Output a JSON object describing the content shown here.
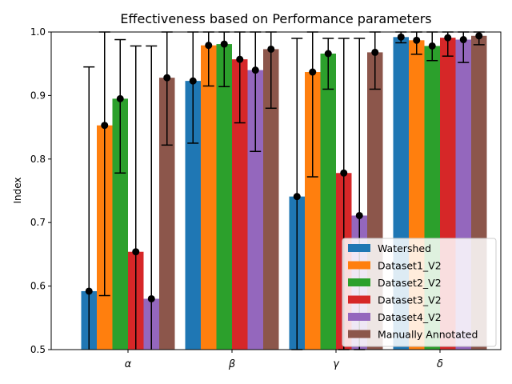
{
  "chart_data": {
    "type": "bar",
    "title": "Effectiveness based on Performance parameters",
    "xlabel": "",
    "ylabel": "Index",
    "ylim": [
      0.5,
      1.0
    ],
    "yticks": [
      "0.5",
      "0.6",
      "0.7",
      "0.8",
      "0.9",
      "1.0"
    ],
    "ytick_values": [
      0.5,
      0.6,
      0.7,
      0.8,
      0.9,
      1.0
    ],
    "categories": [
      "α",
      "β",
      "γ",
      "δ"
    ],
    "grid": false,
    "legend_position": "lower-right",
    "series": [
      {
        "name": "Watershed",
        "color": "#1f77b4",
        "values": [
          0.592,
          0.923,
          0.741,
          0.992
        ],
        "err_low": [
          0.4,
          0.825,
          0.5,
          0.983
        ],
        "err_high": [
          0.945,
          1.0,
          0.99,
          1.0
        ]
      },
      {
        "name": "Dataset1_V2",
        "color": "#ff7f0e",
        "values": [
          0.853,
          0.979,
          0.937,
          0.987
        ],
        "err_low": [
          0.585,
          0.915,
          0.772,
          0.965
        ],
        "err_high": [
          1.0,
          1.0,
          1.0,
          1.0
        ]
      },
      {
        "name": "Dataset2_V2",
        "color": "#2ca02c",
        "values": [
          0.895,
          0.981,
          0.966,
          0.978
        ],
        "err_low": [
          0.778,
          0.914,
          0.91,
          0.955
        ],
        "err_high": [
          0.988,
          1.0,
          0.99,
          1.0
        ]
      },
      {
        "name": "Dataset3_V2",
        "color": "#d62728",
        "values": [
          0.654,
          0.957,
          0.778,
          0.991
        ],
        "err_low": [
          0.4,
          0.857,
          0.5,
          0.962
        ],
        "err_high": [
          0.978,
          1.0,
          0.99,
          1.0
        ]
      },
      {
        "name": "Dataset4_V2",
        "color": "#9467bd",
        "values": [
          0.58,
          0.94,
          0.711,
          0.988
        ],
        "err_low": [
          0.4,
          0.812,
          0.5,
          0.952
        ],
        "err_high": [
          0.978,
          1.0,
          0.99,
          1.0
        ]
      },
      {
        "name": "Manually Annotated",
        "color": "#8c564b",
        "values": [
          0.928,
          0.973,
          0.968,
          0.994
        ],
        "err_low": [
          0.822,
          0.88,
          0.91,
          0.98
        ],
        "err_high": [
          1.0,
          1.0,
          1.0,
          1.0
        ]
      }
    ]
  }
}
